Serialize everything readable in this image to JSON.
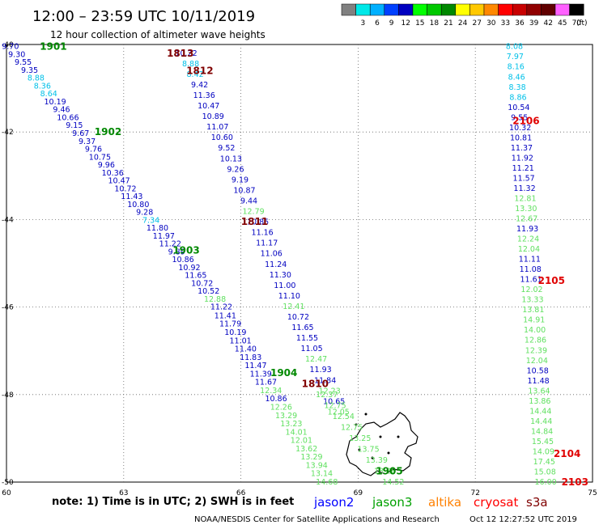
{
  "title": "12:00 – 23:59 UTC 10/11/2019",
  "subtitle": "12 hour collection of altimeter wave heights",
  "legend": {
    "unit": "(ft)",
    "bins": [
      {
        "label": "",
        "color": "#808080"
      },
      {
        "label": "3",
        "color": "#00e8e8"
      },
      {
        "label": "6",
        "color": "#00b0ff"
      },
      {
        "label": "9",
        "color": "#0040ff"
      },
      {
        "label": "12",
        "color": "#0000c0"
      },
      {
        "label": "15",
        "color": "#00ff00"
      },
      {
        "label": "18",
        "color": "#00c800"
      },
      {
        "label": "21",
        "color": "#008800"
      },
      {
        "label": "24",
        "color": "#ffff00"
      },
      {
        "label": "27",
        "color": "#ffc800"
      },
      {
        "label": "30",
        "color": "#ff8800"
      },
      {
        "label": "33",
        "color": "#ff0000"
      },
      {
        "label": "36",
        "color": "#c80000"
      },
      {
        "label": "39",
        "color": "#900000"
      },
      {
        "label": "42",
        "color": "#600000"
      },
      {
        "label": "45",
        "color": "#ff60ff"
      },
      {
        "label": "70",
        "color": "#000000"
      }
    ]
  },
  "map": {
    "lon_range": [
      60,
      75
    ],
    "lat_range": [
      -50,
      -40
    ],
    "x_ticks": [
      "60",
      "63",
      "66",
      "69",
      "72",
      "75"
    ],
    "y_ticks": [
      "-40",
      "-42",
      "-44",
      "-46",
      "-48",
      "-50"
    ]
  },
  "colors": {
    "c1": "#00c0e8",
    "c2": "#0000c0",
    "c3": "#60e060",
    "hour_green": "#008800",
    "hour_dark_red": "#800000",
    "hour_red": "#e00000",
    "jason2": "#0000ff",
    "jason3": "#00a000",
    "altika": "#ff8000",
    "cryosat": "#ff0000",
    "s3a": "#800000",
    "coast": "#000000"
  },
  "hour_labels": [
    {
      "text": "1901",
      "color": "hour_green",
      "lon": 61.2,
      "lat": -40.05
    },
    {
      "text": "1902",
      "color": "hour_green",
      "lon": 62.6,
      "lat": -42.0
    },
    {
      "text": "1903",
      "color": "hour_green",
      "lon": 64.6,
      "lat": -44.7
    },
    {
      "text": "1904",
      "color": "hour_green",
      "lon": 67.1,
      "lat": -47.5
    },
    {
      "text": "1905",
      "color": "hour_green",
      "lon": 69.8,
      "lat": -49.75
    },
    {
      "text": "1813",
      "color": "hour_dark_red",
      "lon": 64.45,
      "lat": -40.2
    },
    {
      "text": "1812",
      "color": "hour_dark_red",
      "lon": 64.95,
      "lat": -40.6
    },
    {
      "text": "1811",
      "color": "hour_dark_red",
      "lon": 66.35,
      "lat": -44.05
    },
    {
      "text": "1810",
      "color": "hour_dark_red",
      "lon": 67.9,
      "lat": -47.75
    },
    {
      "text": "2106",
      "color": "hour_red",
      "lon": 73.3,
      "lat": -41.75
    },
    {
      "text": "2105",
      "color": "hour_red",
      "lon": 73.95,
      "lat": -45.4
    },
    {
      "text": "2104",
      "color": "hour_red",
      "lon": 74.35,
      "lat": -49.35
    },
    {
      "text": "2103",
      "color": "hour_red",
      "lon": 74.55,
      "lat": -50.0
    }
  ],
  "tracks": [
    {
      "lon0": 60.1,
      "lat0": -40.05,
      "lon1": 65.5,
      "lat1": -46.0,
      "points": [
        {
          "v": "9.70",
          "c": "c2"
        },
        {
          "v": "9.30",
          "c": "c2"
        },
        {
          "v": "9.55",
          "c": "c2"
        },
        {
          "v": "9.35",
          "c": "c2"
        },
        {
          "v": "8.88",
          "c": "c1"
        },
        {
          "v": "8.36",
          "c": "c1"
        },
        {
          "v": "8.64",
          "c": "c1"
        },
        {
          "v": "10.19",
          "c": "c2"
        },
        {
          "v": "9.46",
          "c": "c2"
        },
        {
          "v": "10.66",
          "c": "c2"
        },
        {
          "v": "9.15",
          "c": "c2"
        },
        {
          "v": "9.67",
          "c": "c2"
        },
        {
          "v": "9.37",
          "c": "c2"
        },
        {
          "v": "9.76",
          "c": "c2"
        },
        {
          "v": "10.75",
          "c": "c2"
        },
        {
          "v": "9.96",
          "c": "c2"
        },
        {
          "v": "10.36",
          "c": "c2"
        },
        {
          "v": "10.47",
          "c": "c2"
        },
        {
          "v": "10.72",
          "c": "c2"
        },
        {
          "v": "11.43",
          "c": "c2"
        },
        {
          "v": "10.80",
          "c": "c2"
        },
        {
          "v": "9.28",
          "c": "c2"
        },
        {
          "v": "7.34",
          "c": "c1"
        },
        {
          "v": "11.80",
          "c": "c2"
        },
        {
          "v": "11.97",
          "c": "c2"
        },
        {
          "v": "11.22",
          "c": "c2"
        },
        {
          "v": "9.89",
          "c": "c2"
        },
        {
          "v": "10.86",
          "c": "c2"
        },
        {
          "v": "10.92",
          "c": "c2"
        },
        {
          "v": "11.65",
          "c": "c2"
        },
        {
          "v": "10.72",
          "c": "c2"
        },
        {
          "v": "10.52",
          "c": "c2"
        },
        {
          "v": "12.88",
          "c": "c3"
        },
        {
          "v": "11.22",
          "c": "c2"
        }
      ]
    },
    {
      "lon0": 65.6,
      "lat0": -46.2,
      "lon1": 68.2,
      "lat1": -50.0,
      "points": [
        {
          "v": "11.41",
          "c": "c2"
        },
        {
          "v": "11.79",
          "c": "c2"
        },
        {
          "v": "10.19",
          "c": "c2"
        },
        {
          "v": "11.01",
          "c": "c2"
        },
        {
          "v": "11.40",
          "c": "c2"
        },
        {
          "v": "11.83",
          "c": "c2"
        },
        {
          "v": "11.47",
          "c": "c2"
        },
        {
          "v": "11.39",
          "c": "c2"
        },
        {
          "v": "11.67",
          "c": "c2"
        },
        {
          "v": "12.34",
          "c": "c3"
        },
        {
          "v": "10.86",
          "c": "c2"
        },
        {
          "v": "12.26",
          "c": "c3"
        },
        {
          "v": "13.29",
          "c": "c3"
        },
        {
          "v": "13.23",
          "c": "c3"
        },
        {
          "v": "14.01",
          "c": "c3"
        },
        {
          "v": "12.01",
          "c": "c3"
        },
        {
          "v": "13.62",
          "c": "c3"
        },
        {
          "v": "13.29",
          "c": "c3"
        },
        {
          "v": "13.94",
          "c": "c3"
        },
        {
          "v": "13.14",
          "c": "c3"
        },
        {
          "v": "14.68",
          "c": "c3"
        }
      ]
    },
    {
      "lon0": 64.6,
      "lat0": -40.2,
      "lon1": 68.5,
      "lat1": -48.4,
      "points": [
        {
          "v": "10.22",
          "c": "c2"
        },
        {
          "v": "8.88",
          "c": "c1"
        },
        {
          "v": "8.42",
          "c": "c1"
        },
        {
          "v": "9.42",
          "c": "c2"
        },
        {
          "v": "11.36",
          "c": "c2"
        },
        {
          "v": "10.47",
          "c": "c2"
        },
        {
          "v": "10.89",
          "c": "c2"
        },
        {
          "v": "11.07",
          "c": "c2"
        },
        {
          "v": "10.60",
          "c": "c2"
        },
        {
          "v": "9.52",
          "c": "c2"
        },
        {
          "v": "10.13",
          "c": "c2"
        },
        {
          "v": "9.26",
          "c": "c2"
        },
        {
          "v": "9.19",
          "c": "c2"
        },
        {
          "v": "10.87",
          "c": "c2"
        },
        {
          "v": "9.44",
          "c": "c2"
        },
        {
          "v": "12.79",
          "c": "c3"
        },
        {
          "v": "10.85",
          "c": "c2"
        },
        {
          "v": "11.16",
          "c": "c2"
        },
        {
          "v": "11.17",
          "c": "c2"
        },
        {
          "v": "11.06",
          "c": "c2"
        },
        {
          "v": "11.24",
          "c": "c2"
        },
        {
          "v": "11.30",
          "c": "c2"
        },
        {
          "v": "11.00",
          "c": "c2"
        },
        {
          "v": "11.10",
          "c": "c2"
        },
        {
          "v": "12.41",
          "c": "c3"
        },
        {
          "v": "10.72",
          "c": "c2"
        },
        {
          "v": "11.65",
          "c": "c2"
        },
        {
          "v": "11.55",
          "c": "c2"
        },
        {
          "v": "11.05",
          "c": "c2"
        },
        {
          "v": "12.47",
          "c": "c3"
        },
        {
          "v": "11.93",
          "c": "c2"
        },
        {
          "v": "11.84",
          "c": "c2"
        },
        {
          "v": "12.23",
          "c": "c3"
        },
        {
          "v": "10.65",
          "c": "c2"
        },
        {
          "v": "12.05",
          "c": "c3"
        }
      ]
    },
    {
      "lon0": 68.2,
      "lat0": -48.0,
      "lon1": 69.9,
      "lat1": -50.0,
      "points": [
        {
          "v": "12.37",
          "c": "c3"
        },
        {
          "v": "12.75",
          "c": "c3"
        },
        {
          "v": "12.54",
          "c": "c3"
        },
        {
          "v": "12.75",
          "c": "c3"
        },
        {
          "v": "13.25",
          "c": "c3"
        },
        {
          "v": "13.75",
          "c": "c3"
        },
        {
          "v": "13.39",
          "c": "c3"
        },
        {
          "v": "13.28",
          "c": "c3"
        },
        {
          "v": "14.52",
          "c": "c3"
        }
      ]
    },
    {
      "lon0": 73.0,
      "lat0": -40.05,
      "lon1": 73.8,
      "lat1": -50.0,
      "points": [
        {
          "v": "8.08",
          "c": "c1"
        },
        {
          "v": "7.97",
          "c": "c1"
        },
        {
          "v": "8.16",
          "c": "c1"
        },
        {
          "v": "8.46",
          "c": "c1"
        },
        {
          "v": "8.38",
          "c": "c1"
        },
        {
          "v": "8.86",
          "c": "c1"
        },
        {
          "v": "10.54",
          "c": "c2"
        },
        {
          "v": "9.55",
          "c": "c2"
        },
        {
          "v": "10.32",
          "c": "c2"
        },
        {
          "v": "10.81",
          "c": "c2"
        },
        {
          "v": "11.37",
          "c": "c2"
        },
        {
          "v": "11.92",
          "c": "c2"
        },
        {
          "v": "11.21",
          "c": "c2"
        },
        {
          "v": "11.57",
          "c": "c2"
        },
        {
          "v": "11.32",
          "c": "c2"
        },
        {
          "v": "12.81",
          "c": "c3"
        },
        {
          "v": "13.30",
          "c": "c3"
        },
        {
          "v": "12.67",
          "c": "c3"
        },
        {
          "v": "11.93",
          "c": "c2"
        },
        {
          "v": "12.24",
          "c": "c3"
        },
        {
          "v": "12.04",
          "c": "c3"
        },
        {
          "v": "11.11",
          "c": "c2"
        },
        {
          "v": "11.08",
          "c": "c2"
        },
        {
          "v": "11.61",
          "c": "c2"
        },
        {
          "v": "12.02",
          "c": "c3"
        },
        {
          "v": "13.33",
          "c": "c3"
        },
        {
          "v": "13.81",
          "c": "c3"
        },
        {
          "v": "14.91",
          "c": "c3"
        },
        {
          "v": "14.00",
          "c": "c3"
        },
        {
          "v": "12.86",
          "c": "c3"
        },
        {
          "v": "12.39",
          "c": "c3"
        },
        {
          "v": "12.04",
          "c": "c3"
        },
        {
          "v": "10.58",
          "c": "c2"
        },
        {
          "v": "11.48",
          "c": "c2"
        },
        {
          "v": "13.64",
          "c": "c3"
        },
        {
          "v": "13.86",
          "c": "c3"
        },
        {
          "v": "14.44",
          "c": "c3"
        },
        {
          "v": "14.44",
          "c": "c3"
        },
        {
          "v": "14.84",
          "c": "c3"
        },
        {
          "v": "15.45",
          "c": "c3"
        },
        {
          "v": "14.09",
          "c": "c3"
        },
        {
          "v": "17.45",
          "c": "c3"
        },
        {
          "v": "15.08",
          "c": "c3"
        },
        {
          "v": "16.00",
          "c": "c3"
        }
      ]
    }
  ],
  "note": "note:  1) Time is in UTC;  2) SWH is in feet",
  "satellites": [
    {
      "name": "jason2",
      "color": "jason2"
    },
    {
      "name": "jason3",
      "color": "jason3"
    },
    {
      "name": "altika",
      "color": "altika"
    },
    {
      "name": "cryosat",
      "color": "cryosat"
    },
    {
      "name": "s3a",
      "color": "s3a"
    }
  ],
  "credit": "NOAA/NESDIS Center for Satellite Applications and Research",
  "timestamp": "Oct 12 12:27:52 UTC 2019"
}
